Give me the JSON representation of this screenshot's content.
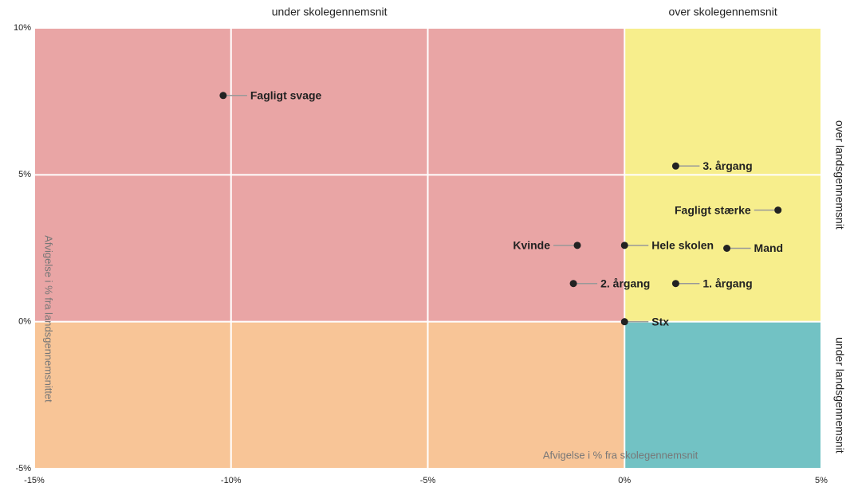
{
  "chart_data": {
    "type": "scatter",
    "xlabel": "Afvigelse i % fra skolegennemsnit",
    "ylabel": "Afvigelse i % fra landsgennemsnittet",
    "labels": [
      "Fagligt svage",
      "3. årgang",
      "Fagligt stærke",
      "Kvinde",
      "Hele skolen",
      "Mand",
      "2. årgang",
      "1. årgang",
      "Stx"
    ],
    "x": [
      -10.2,
      1.3,
      3.9,
      -1.2,
      0.0,
      2.6,
      -1.3,
      1.3,
      0.0
    ],
    "values": [
      7.7,
      5.3,
      3.8,
      2.6,
      2.6,
      2.5,
      1.3,
      1.3,
      0.0
    ],
    "color": "#222222",
    "xlim": [
      -15,
      5
    ],
    "ylim": [
      -5,
      10
    ],
    "xticks": [
      {
        "value": -15,
        "label": "-15%"
      },
      {
        "value": -10,
        "label": "-10%"
      },
      {
        "value": -5,
        "label": "-5%"
      },
      {
        "value": 0,
        "label": "0%"
      },
      {
        "value": 5,
        "label": "5%"
      }
    ],
    "yticks": [
      {
        "value": -5,
        "label": "-5%"
      },
      {
        "value": 0,
        "label": "0%"
      },
      {
        "value": 5,
        "label": "5%"
      },
      {
        "value": 10,
        "label": "10%"
      }
    ],
    "grid": true,
    "quadrants": {
      "top_left": {
        "color": "#e9a5a5"
      },
      "top_right": {
        "color": "#f7ee8c"
      },
      "bottom_left": {
        "color": "#f8c597"
      },
      "bottom_right": {
        "color": "#72c2c4"
      }
    },
    "x_regions": [
      "under skolegennemsnit",
      "over skolegennemsnit"
    ],
    "y_regions": [
      "over landsgennemsnit",
      "under landsgennemsnit"
    ]
  }
}
